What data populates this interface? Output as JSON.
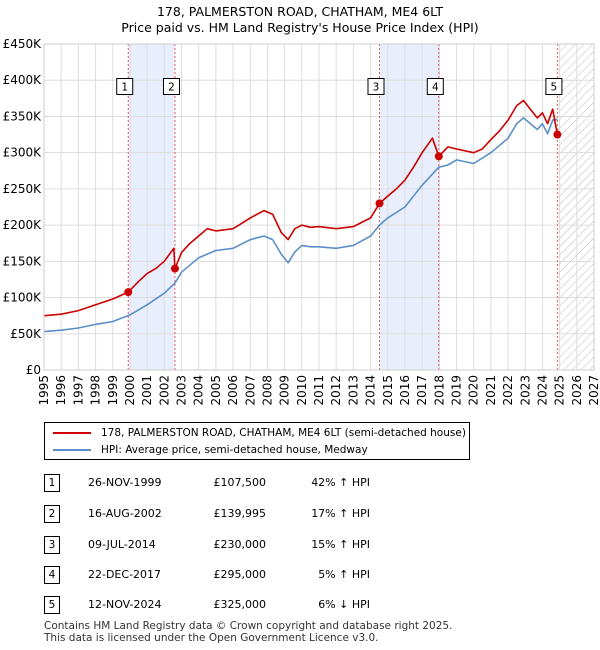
{
  "title_line1": "178, PALMERSTON ROAD, CHATHAM, ME4 6LT",
  "title_line2": "Price paid vs. HM Land Registry's House Price Index (HPI)",
  "colors": {
    "property": "#cc0000",
    "hpi": "#5b8fc7",
    "band": "#e8eefb",
    "event_line": "#e06060",
    "grid": "#dddddd"
  },
  "chart_data": {
    "type": "line",
    "xlim": [
      1995,
      2027
    ],
    "ylim": [
      0,
      450000
    ],
    "y_ticks": [
      0,
      50000,
      100000,
      150000,
      200000,
      250000,
      300000,
      350000,
      400000,
      450000
    ],
    "y_tick_labels": [
      "£0",
      "£50K",
      "£100K",
      "£150K",
      "£200K",
      "£250K",
      "£300K",
      "£350K",
      "£400K",
      "£450K"
    ],
    "x_ticks": [
      1995,
      1996,
      1997,
      1998,
      1999,
      2000,
      2001,
      2002,
      2003,
      2004,
      2005,
      2006,
      2007,
      2008,
      2009,
      2010,
      2011,
      2012,
      2013,
      2014,
      2015,
      2016,
      2017,
      2018,
      2019,
      2020,
      2021,
      2022,
      2023,
      2024,
      2025,
      2026,
      2027
    ],
    "x_tick_labels": [
      "1995",
      "1996",
      "1997",
      "1998",
      "1999",
      "2000",
      "2001",
      "2002",
      "2003",
      "2004",
      "2005",
      "2006",
      "2007",
      "2008",
      "2009",
      "2010",
      "2011",
      "2012",
      "2013",
      "2014",
      "2015",
      "2016",
      "2017",
      "2018",
      "2019",
      "2020",
      "2021",
      "2022",
      "2023",
      "2024",
      "2025",
      "2026",
      "2027"
    ],
    "shaded_periods": [
      [
        1999.9,
        2002.62
      ],
      [
        2014.52,
        2017.97
      ]
    ],
    "future_hatch_from": 2024.87,
    "series": [
      {
        "name": "178, PALMERSTON ROAD, CHATHAM, ME4 6LT (semi-detached house)",
        "x": [
          1995.0,
          1996.0,
          1997.0,
          1998.0,
          1999.0,
          1999.9,
          2000.5,
          2001.0,
          2001.5,
          2002.0,
          2002.55,
          2002.62,
          2003.0,
          2003.5,
          2004.0,
          2004.5,
          2005.0,
          2006.0,
          2007.0,
          2007.8,
          2008.3,
          2008.8,
          2009.2,
          2009.6,
          2010.0,
          2010.5,
          2011.0,
          2012.0,
          2013.0,
          2014.0,
          2014.52,
          2015.0,
          2015.5,
          2016.0,
          2016.5,
          2017.0,
          2017.6,
          2017.97,
          2018.5,
          2019.0,
          2020.0,
          2020.5,
          2021.0,
          2021.5,
          2022.0,
          2022.5,
          2022.9,
          2023.3,
          2023.7,
          2024.0,
          2024.3,
          2024.6,
          2024.87
        ],
        "values": [
          75000,
          77000,
          82000,
          90000,
          98000,
          107500,
          122000,
          133000,
          140000,
          150000,
          168000,
          139995,
          162000,
          175000,
          185000,
          195000,
          192000,
          195000,
          210000,
          220000,
          215000,
          190000,
          180000,
          195000,
          200000,
          197000,
          198000,
          195000,
          198000,
          210000,
          230000,
          240000,
          250000,
          262000,
          280000,
          300000,
          320000,
          295000,
          308000,
          305000,
          300000,
          305000,
          318000,
          330000,
          345000,
          365000,
          372000,
          360000,
          348000,
          355000,
          340000,
          360000,
          325000
        ]
      },
      {
        "name": "HPI: Average price, semi-detached house, Medway",
        "x": [
          1995.0,
          1996.0,
          1997.0,
          1998.0,
          1999.0,
          2000.0,
          2001.0,
          2002.0,
          2002.62,
          2003.0,
          2004.0,
          2005.0,
          2006.0,
          2007.0,
          2007.8,
          2008.3,
          2008.8,
          2009.2,
          2009.6,
          2010.0,
          2010.5,
          2011.0,
          2012.0,
          2013.0,
          2014.0,
          2014.52,
          2015.0,
          2016.0,
          2017.0,
          2017.97,
          2018.5,
          2019.0,
          2020.0,
          2021.0,
          2022.0,
          2022.5,
          2022.9,
          2023.3,
          2023.7,
          2024.0,
          2024.3,
          2024.6,
          2024.87
        ],
        "values": [
          53000,
          55000,
          58000,
          63000,
          67000,
          76000,
          90000,
          106000,
          120000,
          135000,
          155000,
          165000,
          168000,
          180000,
          185000,
          180000,
          160000,
          148000,
          163000,
          172000,
          170000,
          170000,
          168000,
          172000,
          185000,
          200000,
          210000,
          225000,
          255000,
          280000,
          283000,
          290000,
          285000,
          300000,
          320000,
          340000,
          348000,
          340000,
          332000,
          340000,
          326000,
          345000,
          346000
        ]
      }
    ],
    "sales": [
      {
        "num": "1",
        "x": 1999.9,
        "value": 107500
      },
      {
        "num": "2",
        "x": 2002.62,
        "value": 139995
      },
      {
        "num": "3",
        "x": 2014.52,
        "value": 230000
      },
      {
        "num": "4",
        "x": 2017.97,
        "value": 295000
      },
      {
        "num": "5",
        "x": 2024.87,
        "value": 325000
      }
    ],
    "legend_position": "bottom"
  },
  "legend": {
    "property_label": "178, PALMERSTON ROAD, CHATHAM, ME4 6LT (semi-detached house)",
    "hpi_label": "HPI: Average price, semi-detached house, Medway"
  },
  "transactions": [
    {
      "num": "1",
      "date": "26-NOV-1999",
      "price": "£107,500",
      "hpi": "42% ↑ HPI"
    },
    {
      "num": "2",
      "date": "16-AUG-2002",
      "price": "£139,995",
      "hpi": "17% ↑ HPI"
    },
    {
      "num": "3",
      "date": "09-JUL-2014",
      "price": "£230,000",
      "hpi": "15% ↑ HPI"
    },
    {
      "num": "4",
      "date": "22-DEC-2017",
      "price": "£295,000",
      "hpi": "5% ↑ HPI"
    },
    {
      "num": "5",
      "date": "12-NOV-2024",
      "price": "£325,000",
      "hpi": "6% ↓ HPI"
    }
  ],
  "footer_line1": "Contains HM Land Registry data © Crown copyright and database right 2025.",
  "footer_line2": "This data is licensed under the Open Government Licence v3.0."
}
